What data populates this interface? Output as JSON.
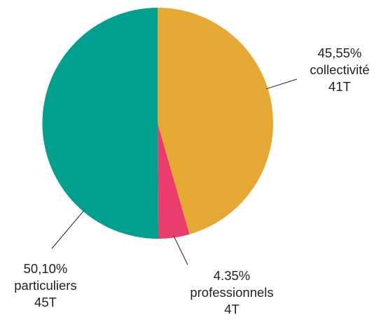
{
  "chart_data": {
    "type": "pie",
    "title": "",
    "slices": [
      {
        "category": "collectivité",
        "percent_label": "45,55%",
        "percent": 45.55,
        "tonnage_label": "41T",
        "tonnage": 41,
        "color": "#E5A832"
      },
      {
        "category": "professionnels",
        "percent_label": "4.35%",
        "percent": 4.35,
        "tonnage_label": "4T",
        "tonnage": 4,
        "color": "#EB3D6B"
      },
      {
        "category": "particuliers",
        "percent_label": "50,10%",
        "percent": 50.1,
        "tonnage_label": "45T",
        "tonnage": 45,
        "color": "#00A08F"
      }
    ],
    "start_angle": "12 o'clock",
    "direction": "clockwise",
    "legend": "none",
    "label_style": "outside with leader lines"
  }
}
